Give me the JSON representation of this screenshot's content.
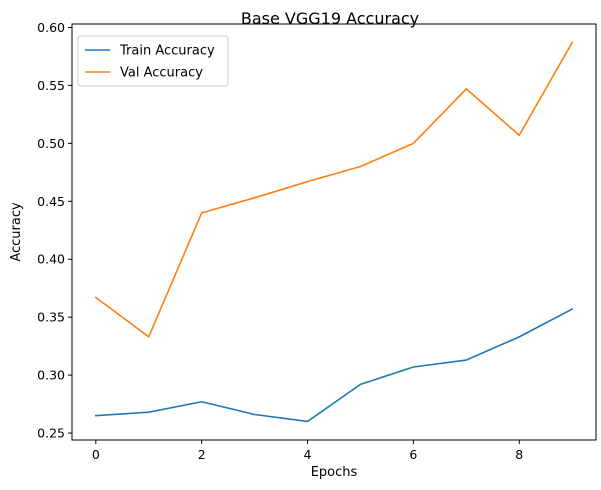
{
  "chart_data": {
    "type": "line",
    "title": "Base VGG19 Accuracy",
    "xlabel": "Epochs",
    "ylabel": "Accuracy",
    "x": [
      0,
      1,
      2,
      3,
      4,
      5,
      6,
      7,
      8,
      9
    ],
    "xlim": [
      -0.45,
      9.45
    ],
    "ylim": [
      0.244,
      0.603
    ],
    "xticks": [
      0,
      2,
      4,
      6,
      8
    ],
    "xtick_labels": [
      "0",
      "2",
      "4",
      "6",
      "8"
    ],
    "yticks": [
      0.25,
      0.3,
      0.35,
      0.4,
      0.45,
      0.5,
      0.55,
      0.6
    ],
    "ytick_labels": [
      "0.25",
      "0.30",
      "0.35",
      "0.40",
      "0.45",
      "0.50",
      "0.55",
      "0.60"
    ],
    "grid": false,
    "legend": "upper-left",
    "series": [
      {
        "name": "Train Accuracy",
        "color": "#1f77b4",
        "values": [
          0.265,
          0.268,
          0.277,
          0.266,
          0.26,
          0.292,
          0.307,
          0.313,
          0.333,
          0.357
        ]
      },
      {
        "name": "Val Accuracy",
        "color": "#ff7f0e",
        "values": [
          0.367,
          0.333,
          0.44,
          0.453,
          0.467,
          0.48,
          0.5,
          0.547,
          0.507,
          0.587
        ]
      }
    ]
  }
}
